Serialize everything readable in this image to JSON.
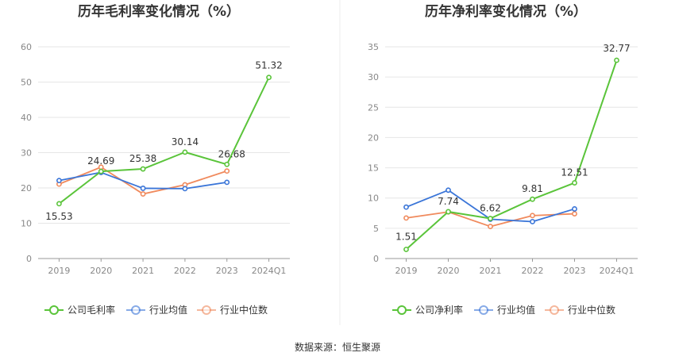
{
  "source_text": "数据来源：恒生聚源",
  "chart_data": [
    {
      "type": "line",
      "title": "历年毛利率变化情况（%）",
      "categories": [
        "2019",
        "2020",
        "2021",
        "2022",
        "2023",
        "2024Q1"
      ],
      "ylim": [
        0,
        60
      ],
      "yticks": [
        0,
        10,
        20,
        30,
        40,
        50,
        60
      ],
      "grid": true,
      "legend_position": "bottom",
      "series": [
        {
          "name": "公司毛利率",
          "color": "#5ac43a",
          "values": [
            15.53,
            24.69,
            25.38,
            30.14,
            26.68,
            51.32
          ],
          "labels": [
            "15.53",
            "24.69",
            "25.38",
            "30.14",
            "26.68",
            "51.32"
          ]
        },
        {
          "name": "行业均值",
          "color": "#3a75d8",
          "values": [
            22.1,
            24.4,
            19.9,
            19.8,
            21.6,
            null
          ]
        },
        {
          "name": "行业中位数",
          "color": "#f08a5d",
          "values": [
            21.1,
            25.9,
            18.3,
            20.9,
            24.8,
            null
          ]
        }
      ]
    },
    {
      "type": "line",
      "title": "历年净利率变化情况（%）",
      "categories": [
        "2019",
        "2020",
        "2021",
        "2022",
        "2023",
        "2024Q1"
      ],
      "ylim": [
        0,
        35
      ],
      "yticks": [
        0,
        5,
        10,
        15,
        20,
        25,
        30,
        35
      ],
      "grid": true,
      "legend_position": "bottom",
      "series": [
        {
          "name": "公司净利率",
          "color": "#5ac43a",
          "values": [
            1.51,
            7.74,
            6.62,
            9.81,
            12.51,
            32.77
          ],
          "labels": [
            "1.51",
            "7.74",
            "6.62",
            "9.81",
            "12.51",
            "32.77"
          ]
        },
        {
          "name": "行业均值",
          "color": "#3a75d8",
          "values": [
            8.5,
            11.3,
            6.5,
            6.1,
            8.2,
            null
          ]
        },
        {
          "name": "行业中位数",
          "color": "#f08a5d",
          "values": [
            6.7,
            7.7,
            5.3,
            7.1,
            7.4,
            null
          ]
        }
      ]
    }
  ]
}
